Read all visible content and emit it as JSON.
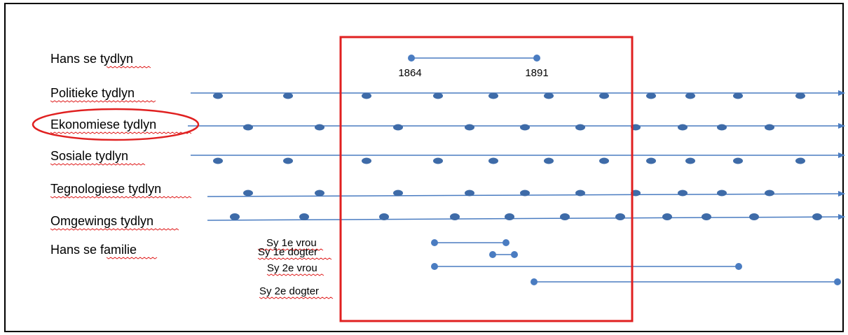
{
  "timelines": [
    {
      "id": "hans",
      "label": "Hans se tydlyn"
    },
    {
      "id": "politieke",
      "label": "Politieke tydlyn"
    },
    {
      "id": "ekonomiese",
      "label": "Ekonomiese  tydlyn",
      "highlighted": true
    },
    {
      "id": "sosiale",
      "label": "Sosiale  tydlyn"
    },
    {
      "id": "tegnologiese",
      "label": "Tegnologiese tydlyn"
    },
    {
      "id": "omgewings",
      "label": "Omgewings tydlyn"
    },
    {
      "id": "familie",
      "label": "Hans se familie"
    }
  ],
  "hans_years": {
    "start": "1864",
    "end": "1891"
  },
  "family": [
    {
      "label": "Sy 1e vrou"
    },
    {
      "label": "Sy 1e dogter"
    },
    {
      "label": "Sy 2e vrou"
    },
    {
      "label": "Sy 2e dogter"
    }
  ],
  "colors": {
    "line": "#4a7cc1",
    "dot": "#3e6ba8",
    "highlight": "#e02020",
    "text": "#000000"
  }
}
